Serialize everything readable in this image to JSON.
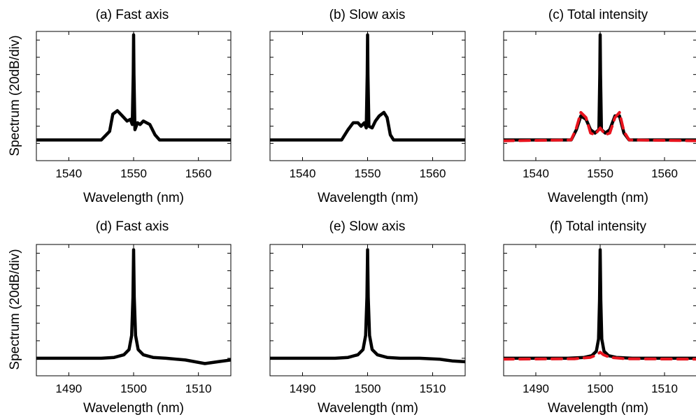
{
  "figure": {
    "ylabel": "Spectrum (20dB/div)",
    "xlabel": "Wavelength (nm)"
  },
  "colors": {
    "trace": "#000000",
    "fit": "#e8141e",
    "axes": "#000000"
  },
  "chart_data": [
    {
      "id": "a",
      "type": "line",
      "title": "(a) Fast axis",
      "xlabel": "Wavelength (nm)",
      "ylabel": "Spectrum (20dB/div)",
      "xlim": [
        1535,
        1565
      ],
      "ylim": [
        0,
        7.5
      ],
      "xticks": [
        1540,
        1550,
        1560
      ],
      "yticks": [
        1,
        2,
        3,
        4,
        5,
        6,
        7
      ],
      "ytick_labels": "none",
      "grid": false,
      "series": [
        {
          "color": "#000000",
          "x": [
            1535,
            1545,
            1546.3,
            1546.8,
            1547.5,
            1548,
            1548.5,
            1549,
            1549.5,
            1549.8,
            1549.95,
            1550,
            1550.05,
            1550.2,
            1550.6,
            1551,
            1551.5,
            1552,
            1552.5,
            1553.3,
            1554,
            1555,
            1565
          ],
          "y": [
            1.2,
            1.2,
            1.7,
            2.7,
            2.9,
            2.7,
            2.5,
            2.3,
            2.4,
            2.1,
            5.0,
            7.3,
            5.0,
            1.8,
            2.2,
            2.1,
            2.3,
            2.2,
            2.1,
            1.5,
            1.2,
            1.2,
            1.2
          ]
        }
      ]
    },
    {
      "id": "b",
      "type": "line",
      "title": "(b) Slow axis",
      "xlabel": "Wavelength (nm)",
      "ylabel": "",
      "xlim": [
        1535,
        1565
      ],
      "ylim": [
        0,
        7.5
      ],
      "xticks": [
        1540,
        1550,
        1560
      ],
      "yticks": [
        1,
        2,
        3,
        4,
        5,
        6,
        7
      ],
      "ytick_labels": "none",
      "grid": false,
      "series": [
        {
          "color": "#000000",
          "x": [
            1535,
            1546,
            1547,
            1547.8,
            1548.5,
            1549,
            1549.5,
            1549.8,
            1549.95,
            1550,
            1550.05,
            1550.2,
            1550.7,
            1551.2,
            1551.8,
            1552.5,
            1553,
            1553.5,
            1554,
            1555,
            1565
          ],
          "y": [
            1.2,
            1.2,
            1.8,
            2.2,
            2.2,
            2.0,
            2.2,
            1.9,
            5.0,
            7.3,
            5.0,
            2.0,
            1.9,
            2.3,
            2.6,
            2.8,
            2.5,
            1.5,
            1.2,
            1.2,
            1.2
          ]
        }
      ]
    },
    {
      "id": "c",
      "type": "line",
      "title": "(c) Total intensity",
      "xlabel": "Wavelength (nm)",
      "ylabel": "",
      "xlim": [
        1535,
        1565
      ],
      "ylim": [
        0,
        7.5
      ],
      "xticks": [
        1540,
        1550,
        1560
      ],
      "yticks": [
        1,
        2,
        3,
        4,
        5,
        6,
        7
      ],
      "ytick_labels": "none",
      "grid": false,
      "series": [
        {
          "color": "#000000",
          "x": [
            1535,
            1545.5,
            1546.3,
            1547,
            1547.8,
            1548.5,
            1549.2,
            1549.8,
            1549.95,
            1550,
            1550.05,
            1550.2,
            1550.8,
            1551.5,
            1552.3,
            1553,
            1553.7,
            1554.5,
            1565
          ],
          "y": [
            1.2,
            1.2,
            1.8,
            2.6,
            2.4,
            1.8,
            1.6,
            1.8,
            5.0,
            7.3,
            5.0,
            1.8,
            1.6,
            1.8,
            2.6,
            2.6,
            1.6,
            1.2,
            1.2
          ]
        },
        {
          "color": "#e8141e",
          "dashed": true,
          "x": [
            1535,
            1545.5,
            1546.3,
            1547,
            1547.8,
            1548.5,
            1549.2,
            1550,
            1550.8,
            1551.5,
            1552.3,
            1553,
            1553.7,
            1554.5,
            1565
          ],
          "y": [
            1.15,
            1.2,
            1.9,
            2.8,
            2.5,
            1.6,
            1.5,
            1.9,
            1.5,
            1.6,
            2.5,
            2.8,
            1.7,
            1.2,
            1.15
          ]
        }
      ]
    },
    {
      "id": "d",
      "type": "line",
      "title": "(d) Fast axis",
      "xlabel": "Wavelength (nm)",
      "ylabel": "Spectrum (20dB/div)",
      "xlim": [
        1485,
        1515
      ],
      "ylim": [
        0,
        7.5
      ],
      "xticks": [
        1490,
        1500,
        1510
      ],
      "yticks": [
        1,
        2,
        3,
        4,
        5,
        6,
        7
      ],
      "ytick_labels": "none",
      "grid": false,
      "series": [
        {
          "color": "#000000",
          "x": [
            1485,
            1492,
            1495,
            1497,
            1498.5,
            1499.3,
            1499.7,
            1499.9,
            1500,
            1500.1,
            1500.3,
            1500.7,
            1501.5,
            1503,
            1505,
            1508,
            1511,
            1513,
            1515
          ],
          "y": [
            1.0,
            1.0,
            1.0,
            1.05,
            1.2,
            1.5,
            2.3,
            4.5,
            7.2,
            4.5,
            2.3,
            1.5,
            1.2,
            1.05,
            1.0,
            0.9,
            0.7,
            0.8,
            0.9
          ]
        }
      ]
    },
    {
      "id": "e",
      "type": "line",
      "title": "(e) Slow axis",
      "xlabel": "Wavelength (nm)",
      "ylabel": "",
      "xlim": [
        1485,
        1515
      ],
      "ylim": [
        0,
        7.5
      ],
      "xticks": [
        1490,
        1500,
        1510
      ],
      "yticks": [
        1,
        2,
        3,
        4,
        5,
        6,
        7
      ],
      "ytick_labels": "none",
      "grid": false,
      "series": [
        {
          "color": "#000000",
          "x": [
            1485,
            1492,
            1495,
            1497,
            1498.5,
            1499.3,
            1499.7,
            1499.9,
            1500,
            1500.1,
            1500.3,
            1500.7,
            1501.5,
            1503,
            1505,
            1508,
            1511,
            1513,
            1515
          ],
          "y": [
            1.0,
            1.0,
            1.0,
            1.05,
            1.2,
            1.5,
            2.3,
            4.5,
            7.2,
            4.5,
            2.3,
            1.5,
            1.2,
            1.05,
            1.0,
            1.0,
            0.95,
            0.85,
            0.8
          ]
        }
      ]
    },
    {
      "id": "f",
      "type": "line",
      "title": "(f) Total intensity",
      "xlabel": "Wavelength (nm)",
      "ylabel": "",
      "xlim": [
        1485,
        1515
      ],
      "ylim": [
        0,
        7.5
      ],
      "xticks": [
        1490,
        1500,
        1510
      ],
      "yticks": [
        1,
        2,
        3,
        4,
        5,
        6,
        7
      ],
      "ytick_labels": "none",
      "grid": false,
      "series": [
        {
          "color": "#000000",
          "x": [
            1485,
            1495,
            1497.5,
            1498.7,
            1499.4,
            1499.75,
            1499.9,
            1500,
            1500.1,
            1500.25,
            1500.6,
            1501.3,
            1502.5,
            1505,
            1515
          ],
          "y": [
            1.0,
            1.0,
            1.05,
            1.15,
            1.4,
            2.1,
            4.3,
            7.2,
            4.3,
            2.1,
            1.4,
            1.15,
            1.05,
            1.0,
            1.0
          ]
        },
        {
          "color": "#e8141e",
          "dashed": true,
          "x": [
            1485,
            1496,
            1498.5,
            1499.5,
            1500,
            1500.5,
            1501.5,
            1504,
            1515
          ],
          "y": [
            0.95,
            0.97,
            1.05,
            1.2,
            1.35,
            1.2,
            1.05,
            0.97,
            0.95
          ]
        }
      ]
    }
  ]
}
